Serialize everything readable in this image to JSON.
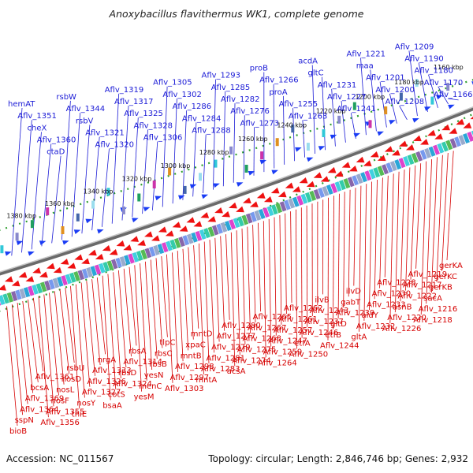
{
  "title": "Anoxybacillus flavithermus WK1, complete genome",
  "footer": {
    "accession": "Accession: NC_011567",
    "summary": "Topology: circular; Length: 2,846,746 bp; Genes: 2,932"
  },
  "colors": {
    "forward_label": "#1a1ad6",
    "reverse_label": "#d60000",
    "forward_arrow": "#1a3cf5",
    "reverse_arrow": "#ee1111",
    "backbone": "#808080",
    "tick_dots": "#2e9e2e"
  },
  "ticks": [
    {
      "label": "1380 kbp"
    },
    {
      "label": "1360 kbp"
    },
    {
      "label": "1340 kbp"
    },
    {
      "label": "1320 kbp"
    },
    {
      "label": "1300 kbp"
    },
    {
      "label": "1280 kbp"
    },
    {
      "label": "1260 kbp"
    },
    {
      "label": "1240 kbp"
    },
    {
      "label": "1220 kbp"
    },
    {
      "label": "1200 kbp"
    },
    {
      "label": "1180 kbp"
    },
    {
      "label": "1160 kbp"
    }
  ],
  "top_labels": [
    "hemAT",
    "Aflv_1351",
    "cheX",
    "Aflv_1360",
    "ctaD",
    "rsbW",
    "Aflv_1344",
    "rsbV",
    "Aflv_1321",
    "Aflv_1320",
    "Aflv_1319",
    "Aflv_1317",
    "Aflv_1325",
    "Aflv_1328",
    "Aflv_1306",
    "Aflv_1305",
    "Aflv_1302",
    "Aflv_1286",
    "Aflv_1284",
    "Aflv_1288",
    "Aflv_1293",
    "Aflv_1285",
    "Aflv_1282",
    "Aflv_1276",
    "Aflv_1273",
    "proB",
    "Aflv_1266",
    "proA",
    "Aflv_1255",
    "Aflv_1263",
    "acdA",
    "gltC",
    "Aflv_1231",
    "Aflv_1227",
    "Aflv_1241",
    "Aflv_1221",
    "maa",
    "Aflv_1201",
    "Aflv_1200",
    "Aflv_1208",
    "Aflv_1209",
    "Aflv_1190",
    "Aflv_1180",
    "Aflv_1170",
    "Aflv_1166"
  ],
  "bottom_labels": [
    "gerKA",
    "gerKC",
    "gerKB",
    "sacA",
    "Aflv_1216",
    "Aflv_1218",
    "Aflv_1219",
    "Aflv_1217",
    "Aflv_1222",
    "asnB",
    "Aflv_1220",
    "Aflv_1226",
    "Aflv_1228",
    "Aflv_1230",
    "Aflv_1233",
    "aldY",
    "Aflv_1232",
    "gltA",
    "ilvD",
    "gabT",
    "Aflv_1239",
    "gltD",
    "etfB",
    "Aflv_1244",
    "ilvB",
    "Aflv_1243",
    "Aflv_1237",
    "Aflv_1246",
    "etfA",
    "Aflv_1250",
    "Aflv_1262",
    "Aflv_1261",
    "Aflv_1257",
    "Aflv_1247",
    "Aflv_1259",
    "Aflv_1264",
    "Aflv_1265",
    "Aflv_1267",
    "Aflv_1268",
    "Aflv_1275",
    "Aflv_1274",
    "acsA",
    "Aflv_1280",
    "Aflv_1277",
    "Aflv_1279",
    "Aflv_1281",
    "Aflv_1283",
    "mntA",
    "mntD",
    "xpaC",
    "mntB",
    "Aflv_1298",
    "Aflv_1297",
    "Aflv_1303",
    "tlpC",
    "rbsC",
    "rbsB",
    "yesN",
    "menC",
    "yesM",
    "rbsA",
    "Aflv_1314",
    "rbsD",
    "Aflv_1324",
    "cotS",
    "bsaA",
    "nrgA",
    "Aflv_1333",
    "Aflv_1326",
    "Aflv_1327",
    "nosY",
    "thiE",
    "rsbU",
    "nosD",
    "nosL",
    "nosF",
    "Aflv_1355",
    "Aflv_1356",
    "Aflv_1361",
    "bcsA",
    "Aflv_1369",
    "Aflv_1364",
    "sspN",
    "bioB"
  ]
}
